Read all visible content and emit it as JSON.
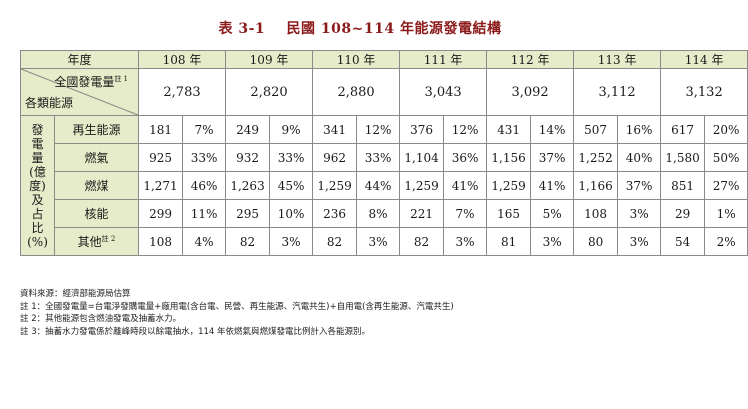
{
  "title": {
    "table_no": "表 3-1",
    "text": "民國 108~114 年能源發電結構"
  },
  "header": {
    "year_label": "年度",
    "years": [
      "108 年",
      "109 年",
      "110 年",
      "111 年",
      "112 年",
      "113 年",
      "114 年"
    ],
    "total_label": "全國發電量",
    "total_note": "註 1",
    "category_label": "各類能源"
  },
  "totals": [
    "2,783",
    "2,820",
    "2,880",
    "3,043",
    "3,092",
    "3,112",
    "3,132"
  ],
  "side_label": [
    "發",
    "電",
    "量",
    "(億",
    "度)",
    "及",
    "占",
    "比",
    "(%)"
  ],
  "rows": [
    {
      "name": "再生能源",
      "note": "",
      "cells": [
        [
          "181",
          "7%"
        ],
        [
          "249",
          "9%"
        ],
        [
          "341",
          "12%"
        ],
        [
          "376",
          "12%"
        ],
        [
          "431",
          "14%"
        ],
        [
          "507",
          "16%"
        ],
        [
          "617",
          "20%"
        ]
      ]
    },
    {
      "name": "燃氣",
      "note": "",
      "cells": [
        [
          "925",
          "33%"
        ],
        [
          "932",
          "33%"
        ],
        [
          "962",
          "33%"
        ],
        [
          "1,104",
          "36%"
        ],
        [
          "1,156",
          "37%"
        ],
        [
          "1,252",
          "40%"
        ],
        [
          "1,580",
          "50%"
        ]
      ]
    },
    {
      "name": "燃煤",
      "note": "",
      "cells": [
        [
          "1,271",
          "46%"
        ],
        [
          "1,263",
          "45%"
        ],
        [
          "1,259",
          "44%"
        ],
        [
          "1,259",
          "41%"
        ],
        [
          "1,259",
          "41%"
        ],
        [
          "1,166",
          "37%"
        ],
        [
          "851",
          "27%"
        ]
      ]
    },
    {
      "name": "核能",
      "note": "",
      "cells": [
        [
          "299",
          "11%"
        ],
        [
          "295",
          "10%"
        ],
        [
          "236",
          "8%"
        ],
        [
          "221",
          "7%"
        ],
        [
          "165",
          "5%"
        ],
        [
          "108",
          "3%"
        ],
        [
          "29",
          "1%"
        ]
      ]
    },
    {
      "name": "其他",
      "note": "註 2",
      "cells": [
        [
          "108",
          "4%"
        ],
        [
          "82",
          "3%"
        ],
        [
          "82",
          "3%"
        ],
        [
          "82",
          "3%"
        ],
        [
          "81",
          "3%"
        ],
        [
          "80",
          "3%"
        ],
        [
          "54",
          "2%"
        ]
      ]
    }
  ],
  "notes": [
    "資料來源：經濟部能源局估算",
    "註 1：全國發電量=台電淨發購電量+廠用電(含台電、民營、再生能源、汽電共生)+自用電(含再生能源、汽電共生)",
    "註 2：其他能源包含燃油發電及抽蓄水力。",
    "註 3：抽蓄水力發電係於離峰時段以餘電抽水，114 年依燃氣與燃煤發電比例計入各能源別。"
  ],
  "colors": {
    "header_bg": "#e6ecc9",
    "title": "#8b1a1a",
    "border": "#8a8a8a"
  }
}
